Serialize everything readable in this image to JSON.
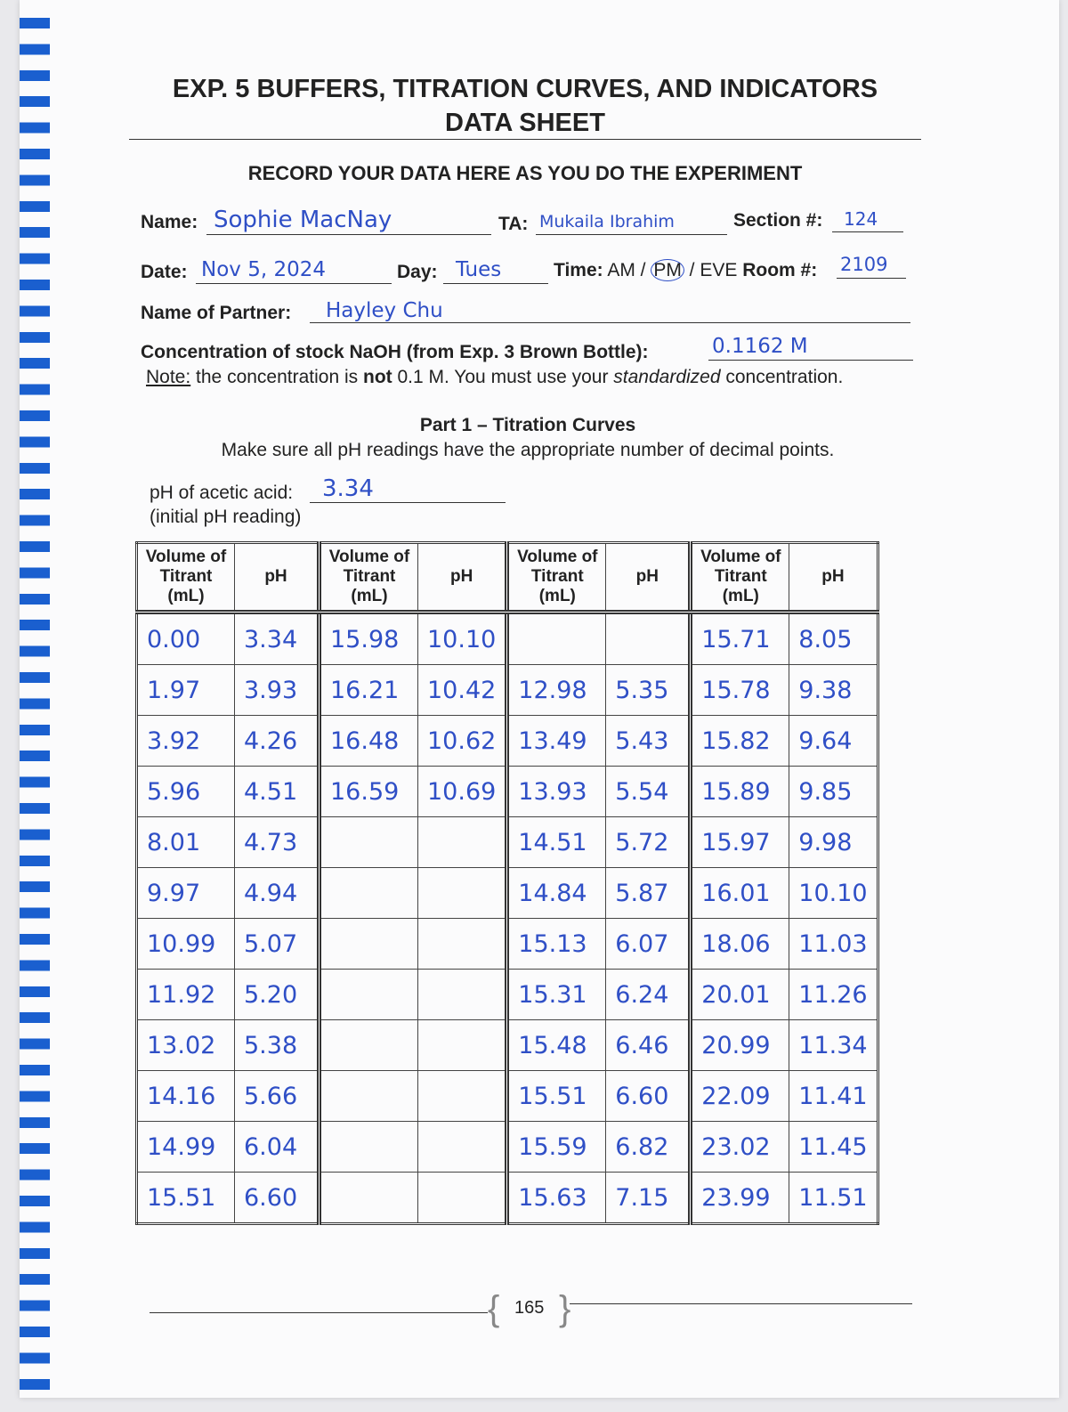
{
  "header": {
    "title": "EXP. 5 BUFFERS, TITRATION CURVES, AND INDICATORS",
    "subtitle": "DATA SHEET",
    "instruction": "RECORD YOUR DATA HERE AS YOU DO THE EXPERIMENT"
  },
  "fields": {
    "name_label": "Name:",
    "name": "Sophie MacNay",
    "ta_label": "TA:",
    "ta": "Mukaila Ibrahim",
    "section_label": "Section #:",
    "section": "124",
    "date_label": "Date:",
    "date": "Nov 5, 2024",
    "day_label": "Day:",
    "day": "Tues",
    "time_label": "Time:",
    "time_options": [
      "AM",
      "PM",
      "EVE"
    ],
    "room_label": "Room #:",
    "room": "2109",
    "partner_label": "Name of Partner:",
    "partner": "Hayley Chu",
    "concentration_label": "Concentration of stock NaOH (from Exp. 3 Brown Bottle):",
    "concentration": "0.1162 M"
  },
  "note": {
    "label": "Note:",
    "parts": [
      "the concentration is ",
      "not",
      " 0.1 M. You must use your ",
      "standardized",
      " concentration."
    ]
  },
  "part1": {
    "title": "Part 1 – Titration Curves",
    "instruction": "Make sure all pH readings have the appropriate number of decimal points.",
    "initial_label": "pH of acetic acid:",
    "initial_value": "3.34",
    "initial_note": "(initial pH reading)"
  },
  "table": {
    "header": [
      "Volume of Titrant (mL)",
      "pH",
      "Volume of Titrant (mL)",
      "pH",
      "Volume of Titrant (mL)",
      "pH",
      "Volume of Titrant (mL)",
      "pH"
    ],
    "rows": [
      [
        "0.00",
        "3.34",
        "15.98",
        "10.10",
        null,
        null,
        "15.71",
        "8.05"
      ],
      [
        "1.97",
        "3.93",
        "16.21",
        "10.42",
        "12.98",
        "5.35",
        "15.78",
        "9.38"
      ],
      [
        "3.92",
        "4.26",
        "16.48",
        "10.62",
        "13.49",
        "5.43",
        "15.82",
        "9.64"
      ],
      [
        "5.96",
        "4.51",
        "16.59",
        "10.69",
        "13.93",
        "5.54",
        "15.89",
        "9.85"
      ],
      [
        "8.01",
        "4.73",
        null,
        null,
        "14.51",
        "5.72",
        "15.97",
        "9.98"
      ],
      [
        "9.97",
        "4.94",
        null,
        null,
        "14.84",
        "5.87",
        "16.01",
        "10.10"
      ],
      [
        "10.99",
        "5.07",
        null,
        null,
        "15.13",
        "6.07",
        "18.06",
        "11.03"
      ],
      [
        "11.92",
        "5.20",
        null,
        null,
        "15.31",
        "6.24",
        "20.01",
        "11.26"
      ],
      [
        "13.02",
        "5.38",
        null,
        null,
        "15.48",
        "6.46",
        "20.99",
        "11.34"
      ],
      [
        "14.16",
        "5.66",
        null,
        null,
        "15.51",
        "6.60",
        "22.09",
        "11.41"
      ],
      [
        "14.99",
        "6.04",
        null,
        null,
        "15.59",
        "6.82",
        "23.02",
        "11.45"
      ],
      [
        "15.51",
        "6.60",
        null,
        null,
        "15.63",
        "7.15",
        "23.99",
        "11.51"
      ]
    ]
  },
  "footer": {
    "page": "165"
  }
}
